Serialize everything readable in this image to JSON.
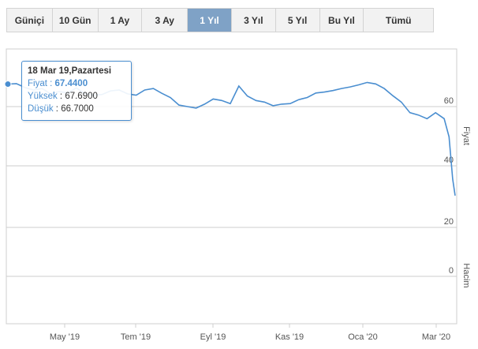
{
  "tabs": [
    {
      "label": "Güniçi",
      "active": false
    },
    {
      "label": "10 Gün",
      "active": false
    },
    {
      "label": "1 Ay",
      "active": false
    },
    {
      "label": "3 Ay",
      "active": false
    },
    {
      "label": "1 Yıl",
      "active": true
    },
    {
      "label": "3 Yıl",
      "active": false
    },
    {
      "label": "5 Yıl",
      "active": false
    },
    {
      "label": "Bu Yıl",
      "active": false
    },
    {
      "label": "Tümü",
      "active": false
    }
  ],
  "tooltip": {
    "date": "18 Mar 19,Pazartesi",
    "price_label": "Fiyat",
    "price_value": "67.4400",
    "high_label": "Yüksek",
    "high_value": "67.6900",
    "low_label": "Düşük",
    "low_value": "66.7000"
  },
  "colors": {
    "line": "#4a8ed0",
    "active_tab": "#7fa2c6",
    "grid": "#cccccc"
  },
  "chart_data": {
    "type": "line",
    "series": [
      {
        "x": [
          "2019-03-18",
          "2019-03-25",
          "2019-04-01",
          "2019-04-08",
          "2019-04-15",
          "2019-04-22",
          "2019-04-29",
          "2019-05-06",
          "2019-05-13",
          "2019-05-20",
          "2019-05-27",
          "2019-06-03",
          "2019-06-10",
          "2019-06-17",
          "2019-06-24",
          "2019-07-01",
          "2019-07-08",
          "2019-07-15",
          "2019-07-22",
          "2019-07-29",
          "2019-08-05",
          "2019-08-12",
          "2019-08-19",
          "2019-08-26",
          "2019-09-02",
          "2019-09-09",
          "2019-09-16",
          "2019-09-23",
          "2019-09-30",
          "2019-10-07",
          "2019-10-14",
          "2019-10-21",
          "2019-10-28",
          "2019-11-04",
          "2019-11-11",
          "2019-11-18",
          "2019-11-25",
          "2019-12-02",
          "2019-12-09",
          "2019-12-16",
          "2019-12-23",
          "2019-12-30",
          "2020-01-06",
          "2020-01-13",
          "2020-01-20",
          "2020-01-27",
          "2020-02-03",
          "2020-02-10",
          "2020-02-17",
          "2020-02-24",
          "2020-03-02",
          "2020-03-09",
          "2020-03-13",
          "2020-03-16",
          "2020-03-18"
        ],
        "y": [
          67.44,
          67.6,
          66.3,
          65.5,
          66.0,
          64.2,
          65.0,
          64.5,
          66.2,
          64.3,
          63.8,
          64.0,
          65.2,
          65.5,
          64.2,
          63.8,
          65.5,
          66.0,
          64.4,
          63.0,
          60.5,
          60.0,
          59.5,
          60.8,
          62.5,
          62.0,
          61.0,
          66.8,
          63.5,
          62.0,
          61.5,
          60.3,
          60.8,
          61.0,
          62.3,
          63.0,
          64.5,
          64.8,
          65.3,
          66.0,
          66.5,
          67.2,
          68.0,
          67.5,
          66.0,
          63.6,
          61.5,
          58.0,
          57.2,
          56.0,
          58.0,
          56.0,
          50.0,
          36.0,
          30.5
        ]
      }
    ],
    "ylabel": "Fiyat",
    "ylabel2": "Hacim",
    "yticks": [
      60,
      40,
      20,
      0
    ],
    "xticks": [
      "May '19",
      "Tem '19",
      "Eyl '19",
      "Kas '19",
      "Oca '20",
      "Mar '20"
    ],
    "grid": true
  }
}
